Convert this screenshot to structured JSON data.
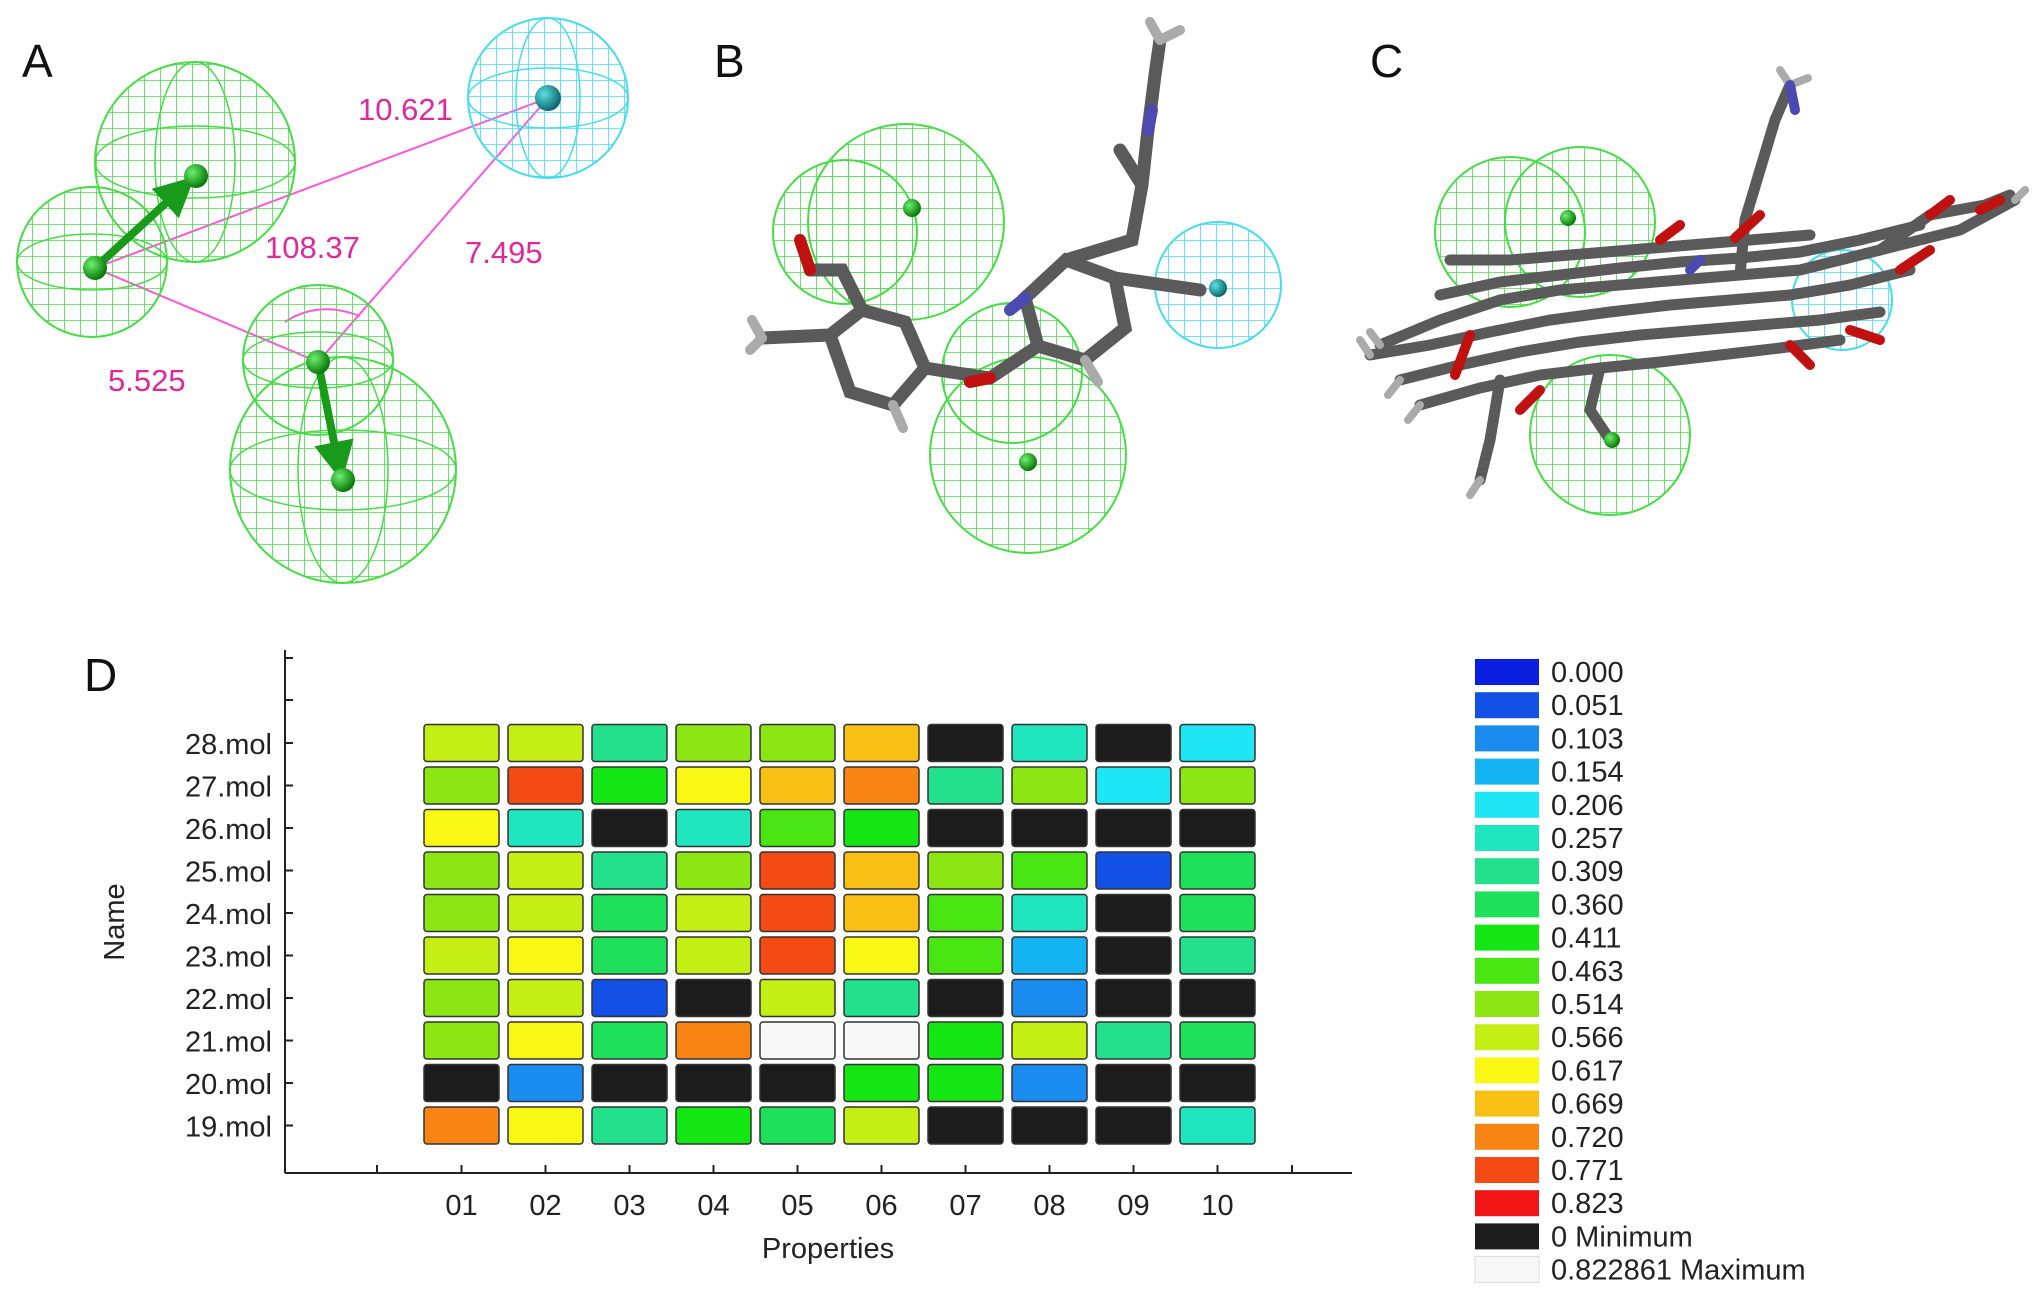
{
  "panels": {
    "a": {
      "letter": "A",
      "distances": [
        "10.621",
        "108.37",
        "7.495",
        "5.525"
      ]
    },
    "b": {
      "letter": "B"
    },
    "c": {
      "letter": "C"
    },
    "d": {
      "letter": "D"
    }
  },
  "colors": {
    "feature_green": "#44dd44",
    "feature_cyan": "#44ddee",
    "constraint_magenta": "#ff55dd",
    "label_magenta": "#e0289a",
    "carbon": "#5a5a5a",
    "oxygen": "#c01010",
    "nitrogen": "#4a4ab0",
    "hydrogen": "#aaaaaa"
  },
  "chart_data": {
    "type": "heatmap",
    "xlabel": "Properties",
    "ylabel": "Name",
    "x_categories": [
      "01",
      "02",
      "03",
      "04",
      "05",
      "06",
      "07",
      "08",
      "09",
      "10"
    ],
    "y_categories": [
      "28.mol",
      "27.mol",
      "26.mol",
      "25.mol",
      "24.mol",
      "23.mol",
      "22.mol",
      "21.mol",
      "20.mol",
      "19.mol"
    ],
    "values": [
      [
        0.566,
        0.566,
        0.309,
        0.514,
        0.514,
        0.669,
        0,
        0.257,
        0,
        0.206
      ],
      [
        0.514,
        0.771,
        0.411,
        0.617,
        0.669,
        0.72,
        0.309,
        0.514,
        0.206,
        0.514
      ],
      [
        0.617,
        0.257,
        0,
        0.257,
        0.463,
        0.411,
        0,
        0,
        0,
        0
      ],
      [
        0.514,
        0.566,
        0.309,
        0.514,
        0.771,
        0.669,
        0.514,
        0.463,
        0.051,
        0.36
      ],
      [
        0.514,
        0.566,
        0.36,
        0.566,
        0.771,
        0.669,
        0.463,
        0.257,
        0,
        0.36
      ],
      [
        0.566,
        0.617,
        0.36,
        0.566,
        0.771,
        0.617,
        0.463,
        0.154,
        0,
        0.309
      ],
      [
        0.514,
        0.566,
        0.051,
        0,
        0.566,
        0.309,
        0,
        0.103,
        0,
        0
      ],
      [
        0.514,
        0.617,
        0.36,
        0.72,
        0.823,
        0.822861,
        0.411,
        0.566,
        0.309,
        0.36
      ],
      [
        0,
        0.103,
        0,
        0.0,
        0,
        0.411,
        0.411,
        0.103,
        0,
        0
      ],
      [
        0.72,
        0.617,
        0.309,
        0.411,
        0.36,
        0.566,
        0,
        0.0,
        0,
        0.257
      ]
    ],
    "legend": {
      "placement": "right",
      "entries": [
        {
          "label": "0.000",
          "color": "#0a1ee0"
        },
        {
          "label": "0.051",
          "color": "#1250e6"
        },
        {
          "label": "0.103",
          "color": "#1a8cf0"
        },
        {
          "label": "0.154",
          "color": "#14b4f2"
        },
        {
          "label": "0.206",
          "color": "#1ee6f5"
        },
        {
          "label": "0.257",
          "color": "#20e6c0"
        },
        {
          "label": "0.309",
          "color": "#22e08c"
        },
        {
          "label": "0.360",
          "color": "#1ee05a"
        },
        {
          "label": "0.411",
          "color": "#14e614"
        },
        {
          "label": "0.463",
          "color": "#4ae614"
        },
        {
          "label": "0.514",
          "color": "#8ce614"
        },
        {
          "label": "0.566",
          "color": "#c4ee14"
        },
        {
          "label": "0.617",
          "color": "#f8f814"
        },
        {
          "label": "0.669",
          "color": "#f8c014"
        },
        {
          "label": "0.720",
          "color": "#f88414"
        },
        {
          "label": "0.771",
          "color": "#f44a14"
        },
        {
          "label": "0.823",
          "color": "#f01414"
        },
        {
          "label": "0 Minimum",
          "color": "#1c1c1c"
        },
        {
          "label": "0.822861 Maximum",
          "color": "#f8f8f8"
        }
      ]
    }
  }
}
